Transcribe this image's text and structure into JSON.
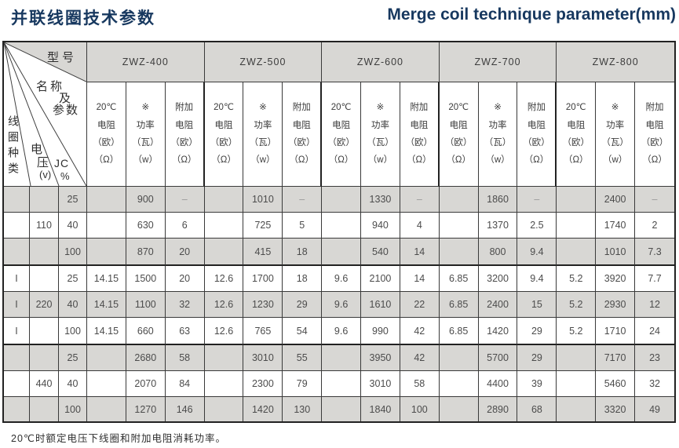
{
  "page": {
    "title_zh": "并联线圈技术参数",
    "title_en": "Merge coil technique parameter(mm)",
    "footnote": "20℃时额定电压下线圈和附加电阻消耗功率。"
  },
  "colors": {
    "navy": "#17385f",
    "gray": "#d8d7d4"
  },
  "table": {
    "corner": {
      "model_label": "型号",
      "name_label": "名称",
      "name_label2": "及",
      "name_label3": "参数",
      "coil_type_label": "线圈种类",
      "voltage_char1": "电",
      "voltage_char2": "压",
      "voltage_unit": "(v)",
      "jc_label": "JC",
      "jc_unit": "%"
    },
    "models": [
      "ZWZ-400",
      "ZWZ-500",
      "ZWZ-600",
      "ZWZ-700",
      "ZWZ-800"
    ],
    "subheaders": [
      "20℃\n电阻\n（欧）\n（Ω）",
      "※\n功率\n（瓦）\n（w）",
      "附加\n电阻\n（欧）\n（Ω）"
    ],
    "groups": [
      {
        "coil_type": "",
        "voltage": "110",
        "rows": [
          {
            "jc": "25",
            "cells": [
              "",
              "900",
              "–",
              "",
              "1010",
              "–",
              "",
              "1330",
              "–",
              "",
              "1860",
              "–",
              "",
              "2400",
              "–"
            ]
          },
          {
            "jc": "40",
            "cells": [
              "",
              "630",
              "6",
              "",
              "725",
              "5",
              "",
              "940",
              "4",
              "",
              "1370",
              "2.5",
              "",
              "1740",
              "2"
            ]
          },
          {
            "jc": "100",
            "cells": [
              "",
              "870",
              "20",
              "",
              "415",
              "18",
              "",
              "540",
              "14",
              "",
              "800",
              "9.4",
              "",
              "1010",
              "7.3"
            ]
          }
        ]
      },
      {
        "coil_type": "I",
        "voltage": "220",
        "rows": [
          {
            "jc": "25",
            "cells": [
              "14.15",
              "1500",
              "20",
              "12.6",
              "1700",
              "18",
              "9.6",
              "2100",
              "14",
              "6.85",
              "3200",
              "9.4",
              "5.2",
              "3920",
              "7.7"
            ]
          },
          {
            "jc": "40",
            "cells": [
              "14.15",
              "1100",
              "32",
              "12.6",
              "1230",
              "29",
              "9.6",
              "1610",
              "22",
              "6.85",
              "2400",
              "15",
              "5.2",
              "2930",
              "12"
            ]
          },
          {
            "jc": "100",
            "cells": [
              "14.15",
              "660",
              "63",
              "12.6",
              "765",
              "54",
              "9.6",
              "990",
              "42",
              "6.85",
              "1420",
              "29",
              "5.2",
              "1710",
              "24"
            ]
          }
        ]
      },
      {
        "coil_type": "",
        "voltage": "440",
        "rows": [
          {
            "jc": "25",
            "cells": [
              "",
              "2680",
              "58",
              "",
              "3010",
              "55",
              "",
              "3950",
              "42",
              "",
              "5700",
              "29",
              "",
              "7170",
              "23"
            ]
          },
          {
            "jc": "40",
            "cells": [
              "",
              "2070",
              "84",
              "",
              "2300",
              "79",
              "",
              "3010",
              "58",
              "",
              "4400",
              "39",
              "",
              "5460",
              "32"
            ]
          },
          {
            "jc": "100",
            "cells": [
              "",
              "1270",
              "146",
              "",
              "1420",
              "130",
              "",
              "1840",
              "100",
              "",
              "2890",
              "68",
              "",
              "3320",
              "49"
            ]
          }
        ]
      }
    ]
  }
}
